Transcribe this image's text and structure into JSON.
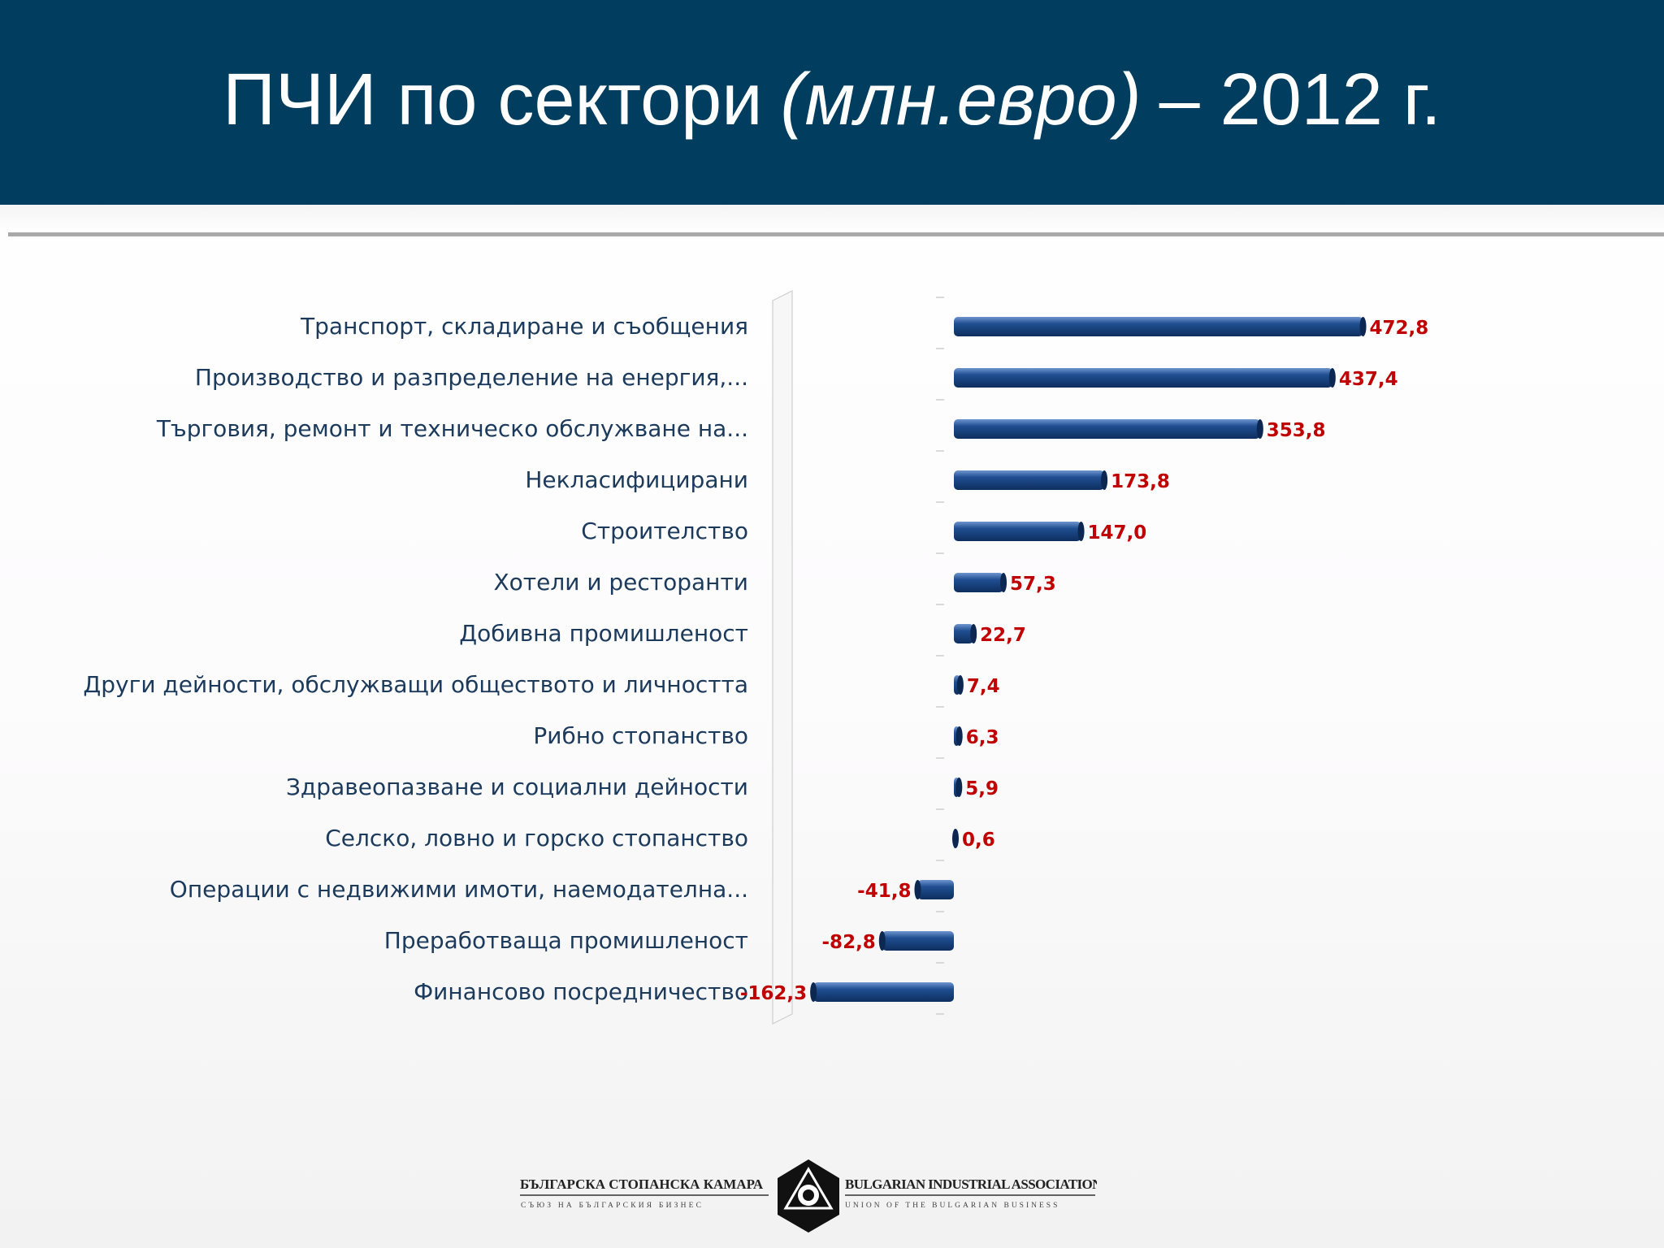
{
  "header": {
    "title_main": "ПЧИ по сектори",
    "title_unit": "(млн.евро)",
    "title_year": "– 2012 г."
  },
  "colors": {
    "header_bg": "#003d5e",
    "bar": "#1f4e91",
    "value_label": "#c00000",
    "category_label": "#1b3a5c"
  },
  "chart_data": {
    "type": "bar",
    "orientation": "horizontal",
    "title": "ПЧИ по сектори (млн.евро) – 2012 г.",
    "xlabel": "",
    "ylabel": "",
    "grid": false,
    "legend": "none",
    "xlim": [
      -165,
      475
    ],
    "categories": [
      "Транспорт, складиране и съобщения",
      "Производство и разпределение на енергия,...",
      "Търговия, ремонт и техническо обслужване на...",
      "Некласифицирани",
      "Строителство",
      "Хотели и ресторанти",
      "Добивна промишленост",
      "Други дейности, обслужващи обществото и личността",
      "Рибно стопанство",
      "Здравеопазване и социални дейности",
      "Селско, ловно и горско стопанство",
      "Операции с недвижими имоти, наемодателна...",
      "Преработваща промишленост",
      "Финансово посредничество"
    ],
    "values": [
      472.8,
      437.4,
      353.8,
      173.8,
      147.0,
      57.3,
      22.7,
      7.4,
      6.3,
      5.9,
      0.6,
      -41.8,
      -82.8,
      -162.3
    ],
    "value_labels": [
      "472,8",
      "437,4",
      "353,8",
      "173,8",
      "147,0",
      "57,3",
      "22,7",
      "7,4",
      "6,3",
      "5,9",
      "0,6",
      "-41,8",
      "-82,8",
      "-162,3"
    ]
  },
  "footer": {
    "bg_name": "БЪЛГАРСКА СТОПАНСКА КАМАРА",
    "bg_subtitle": "СЪЮЗ НА БЪЛГАРСКИЯ БИЗНЕС",
    "en_name": "BULGARIAN INDUSTRIAL ASSOCIATION",
    "en_subtitle": "UNION OF THE BULGARIAN BUSINESS"
  }
}
